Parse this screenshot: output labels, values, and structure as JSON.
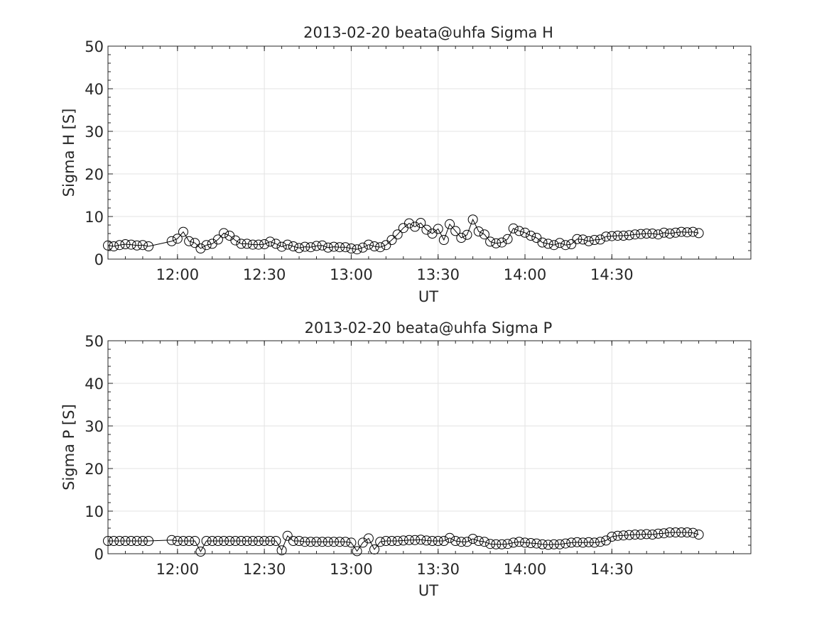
{
  "chart_data": [
    {
      "type": "line",
      "title": "2013-02-20  beata@uhfa Sigma H",
      "xlabel": "UT",
      "ylabel": "Sigma H [S]",
      "ylim": [
        0,
        50
      ],
      "yticks": [
        "0",
        "10",
        "20",
        "30",
        "40",
        "50"
      ],
      "xlim": [
        "11:36",
        "15:18"
      ],
      "xticks": [
        "12:00",
        "12:30",
        "13:00",
        "13:30",
        "14:00",
        "14:30"
      ],
      "grid": true,
      "marker": "circle",
      "series": [
        {
          "x": [
            "11:36",
            "11:38",
            "11:40",
            "11:42",
            "11:44",
            "11:46",
            "11:48",
            "11:50",
            "11:58",
            "12:00",
            "12:02",
            "12:04",
            "12:06",
            "12:08",
            "12:10",
            "12:12",
            "12:14",
            "12:16",
            "12:18",
            "12:20",
            "12:22",
            "12:24",
            "12:26",
            "12:28",
            "12:30",
            "12:32",
            "12:34",
            "12:36",
            "12:38",
            "12:40",
            "12:42",
            "12:44",
            "12:46",
            "12:48",
            "12:50",
            "12:52",
            "12:54",
            "12:56",
            "12:58",
            "13:00",
            "13:02",
            "13:04",
            "13:06",
            "13:08",
            "13:10",
            "13:12",
            "13:14",
            "13:16",
            "13:18",
            "13:20",
            "13:22",
            "13:24",
            "13:26",
            "13:28",
            "13:30",
            "13:32",
            "13:34",
            "13:36",
            "13:38",
            "13:40",
            "13:42",
            "13:44",
            "13:46",
            "13:48",
            "13:50",
            "13:52",
            "13:54",
            "13:56",
            "13:58",
            "14:00",
            "14:02",
            "14:04",
            "14:06",
            "14:08",
            "14:10",
            "14:12",
            "14:14",
            "14:16",
            "14:18",
            "14:20",
            "14:22",
            "14:24",
            "14:26",
            "14:28",
            "14:30",
            "14:32",
            "14:34",
            "14:36",
            "14:38",
            "14:40",
            "14:42",
            "14:44",
            "14:46",
            "14:48",
            "14:50",
            "14:52",
            "14:54",
            "14:56",
            "14:58",
            "15:00"
          ],
          "values": [
            3.2,
            3.0,
            3.3,
            3.5,
            3.4,
            3.2,
            3.3,
            3.0,
            4.2,
            4.8,
            6.4,
            4.2,
            3.8,
            2.5,
            3.3,
            3.6,
            4.6,
            6.1,
            5.5,
            4.4,
            3.6,
            3.6,
            3.4,
            3.4,
            3.5,
            4.1,
            3.6,
            2.9,
            3.4,
            3.0,
            2.6,
            2.9,
            2.8,
            3.1,
            3.2,
            2.7,
            2.9,
            2.8,
            2.8,
            2.5,
            2.3,
            2.7,
            3.4,
            3.0,
            2.8,
            3.3,
            4.5,
            5.8,
            7.3,
            8.4,
            7.6,
            8.5,
            6.9,
            6.0,
            7.1,
            4.5,
            8.2,
            6.6,
            5.0,
            5.7,
            9.3,
            6.5,
            5.8,
            4.1,
            3.7,
            3.9,
            4.7,
            7.2,
            6.6,
            6.2,
            5.5,
            5.0,
            3.9,
            3.6,
            3.3,
            3.8,
            3.3,
            3.5,
            4.7,
            4.6,
            4.2,
            4.5,
            4.6,
            5.3,
            5.4,
            5.5,
            5.5,
            5.6,
            5.8,
            5.9,
            6.0,
            6.0,
            5.8,
            6.2,
            6.0,
            6.2,
            6.4,
            6.3,
            6.4,
            6.1
          ]
        }
      ]
    },
    {
      "type": "line",
      "title": "2013-02-20  beata@uhfa Sigma P",
      "xlabel": "UT",
      "ylabel": "Sigma P [S]",
      "ylim": [
        0,
        50
      ],
      "yticks": [
        "0",
        "10",
        "20",
        "30",
        "40",
        "50"
      ],
      "xlim": [
        "11:36",
        "15:18"
      ],
      "xticks": [
        "12:00",
        "12:30",
        "13:00",
        "13:30",
        "14:00",
        "14:30"
      ],
      "grid": true,
      "marker": "circle",
      "series": [
        {
          "x": [
            "11:36",
            "11:38",
            "11:40",
            "11:42",
            "11:44",
            "11:46",
            "11:48",
            "11:50",
            "11:58",
            "12:00",
            "12:02",
            "12:04",
            "12:06",
            "12:08",
            "12:10",
            "12:12",
            "12:14",
            "12:16",
            "12:18",
            "12:20",
            "12:22",
            "12:24",
            "12:26",
            "12:28",
            "12:30",
            "12:32",
            "12:34",
            "12:36",
            "12:38",
            "12:40",
            "12:42",
            "12:44",
            "12:46",
            "12:48",
            "12:50",
            "12:52",
            "12:54",
            "12:56",
            "12:58",
            "13:00",
            "13:02",
            "13:04",
            "13:06",
            "13:08",
            "13:10",
            "13:12",
            "13:14",
            "13:16",
            "13:18",
            "13:20",
            "13:22",
            "13:24",
            "13:26",
            "13:28",
            "13:30",
            "13:32",
            "13:34",
            "13:36",
            "13:38",
            "13:40",
            "13:42",
            "13:44",
            "13:46",
            "13:48",
            "13:50",
            "13:52",
            "13:54",
            "13:56",
            "13:58",
            "14:00",
            "14:02",
            "14:04",
            "14:06",
            "14:08",
            "14:10",
            "14:12",
            "14:14",
            "14:16",
            "14:18",
            "14:20",
            "14:22",
            "14:24",
            "14:26",
            "14:28",
            "14:30",
            "14:32",
            "14:34",
            "14:36",
            "14:38",
            "14:40",
            "14:42",
            "14:44",
            "14:46",
            "14:48",
            "14:50",
            "14:52",
            "14:54",
            "14:56",
            "14:58",
            "15:00"
          ],
          "values": [
            3.0,
            3.0,
            3.0,
            3.0,
            3.0,
            3.0,
            3.0,
            3.0,
            3.2,
            3.0,
            3.0,
            3.0,
            3.0,
            0.5,
            3.0,
            3.0,
            3.0,
            3.0,
            3.0,
            3.0,
            3.0,
            3.0,
            3.0,
            3.0,
            3.0,
            3.0,
            3.0,
            0.8,
            4.2,
            3.0,
            3.0,
            2.8,
            2.8,
            2.8,
            2.8,
            2.8,
            2.8,
            2.8,
            2.8,
            2.6,
            0.6,
            2.6,
            3.6,
            1.0,
            2.8,
            3.0,
            3.0,
            3.0,
            3.1,
            3.2,
            3.2,
            3.3,
            3.1,
            3.0,
            3.0,
            3.0,
            3.7,
            3.0,
            2.8,
            2.8,
            3.5,
            3.0,
            2.8,
            2.3,
            2.2,
            2.2,
            2.3,
            2.6,
            2.8,
            2.6,
            2.5,
            2.4,
            2.2,
            2.1,
            2.2,
            2.2,
            2.4,
            2.6,
            2.7,
            2.6,
            2.7,
            2.6,
            2.8,
            3.1,
            4.0,
            4.2,
            4.3,
            4.4,
            4.5,
            4.5,
            4.6,
            4.5,
            4.7,
            4.8,
            5.0,
            5.0,
            5.0,
            5.0,
            4.9,
            4.5
          ]
        }
      ]
    }
  ]
}
